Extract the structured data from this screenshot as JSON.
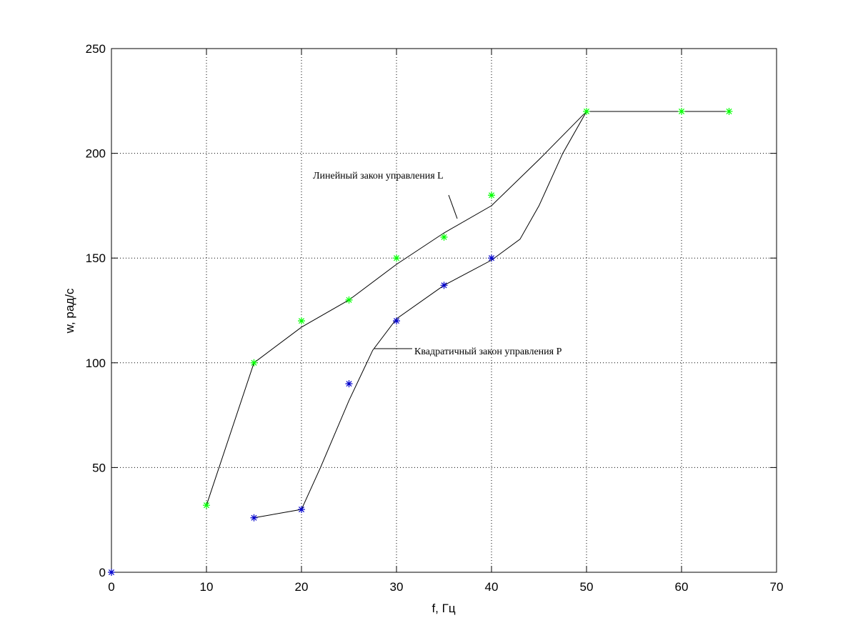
{
  "chart_data": {
    "type": "line",
    "xlabel": "f, Гц",
    "ylabel": "w, рад/с",
    "xlim": [
      0,
      70
    ],
    "ylim": [
      0,
      250
    ],
    "xticks": [
      0,
      10,
      20,
      30,
      40,
      50,
      60,
      70
    ],
    "yticks": [
      0,
      50,
      100,
      150,
      200,
      250
    ],
    "grid": true,
    "annotations": [
      "Линейный закон управления L",
      "Квадратичный закон управления P"
    ],
    "series": [
      {
        "color": "#000000",
        "marker": "none",
        "x": [
          10,
          15,
          20,
          25,
          30,
          35,
          40,
          45,
          50,
          65
        ],
        "values": [
          32,
          100,
          117,
          130,
          147,
          162,
          175,
          197,
          220,
          220
        ]
      },
      {
        "color": "#000000",
        "marker": "none",
        "x": [
          15,
          20,
          22,
          25,
          27.5,
          30,
          35,
          40,
          43,
          45,
          47.5,
          50
        ],
        "values": [
          26,
          30,
          50,
          82,
          106,
          121,
          137,
          149,
          159,
          175,
          200,
          220
        ]
      },
      {
        "color": "#00ff00",
        "marker": "*",
        "x": [
          10,
          15,
          20,
          25,
          30,
          35,
          40,
          50,
          60,
          65
        ],
        "values": [
          32,
          100,
          120,
          130,
          150,
          160,
          180,
          220,
          220,
          220
        ]
      },
      {
        "color": "#0000cc",
        "marker": "*",
        "x": [
          0,
          15,
          20,
          25,
          30,
          35,
          40
        ],
        "values": [
          0,
          26,
          30,
          90,
          120,
          137,
          150
        ]
      }
    ]
  }
}
